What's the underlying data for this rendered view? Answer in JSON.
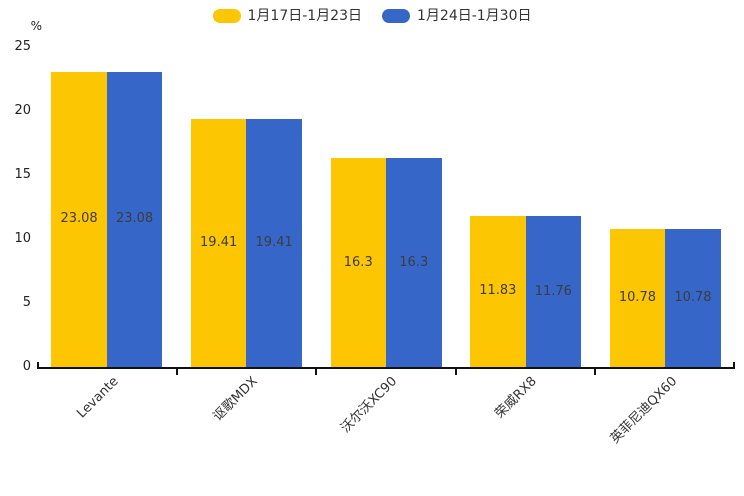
{
  "chart_data": {
    "type": "bar",
    "title": "",
    "ylabel": "%",
    "xlabel": "",
    "ylim": [
      0,
      25
    ],
    "yticks": [
      0,
      5,
      10,
      15,
      20,
      25
    ],
    "grid": false,
    "legend_position": "top",
    "categories": [
      "Levante",
      "讴歌MDX",
      "沃尔沃XC90",
      "荣威RX8",
      "英菲尼迪QX60"
    ],
    "series": [
      {
        "name": "1月17日-1月23日",
        "color": "#FDC602",
        "values": [
          23.08,
          19.41,
          16.3,
          11.83,
          10.78
        ],
        "labels": [
          "23.08",
          "19.41",
          "16.3",
          "11.83",
          "10.78"
        ]
      },
      {
        "name": "1月24日-1月30日",
        "color": "#3566C8",
        "values": [
          23.08,
          19.41,
          16.3,
          11.76,
          10.78
        ],
        "labels": [
          "23.08",
          "19.41",
          "16.3",
          "11.76",
          "10.78"
        ]
      }
    ]
  }
}
